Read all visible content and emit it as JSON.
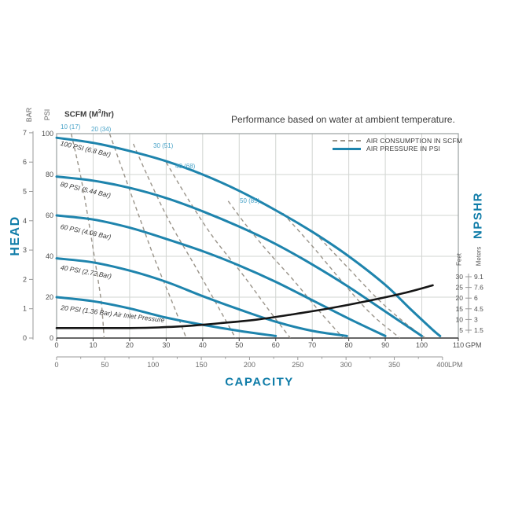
{
  "title": "Performance based on water at ambient temperature.",
  "legend": [
    {
      "label": "AIR CONSUMPTION IN SCFM",
      "style": "dashed"
    },
    {
      "label": "AIR PRESSURE IN PSI",
      "style": "solid"
    }
  ],
  "scfm_header": {
    "pre": "SCFM (M",
    "sup": "3",
    "post": "/hr)"
  },
  "axes": {
    "left": {
      "title": "HEAD",
      "bar_label": "BAR",
      "psi_label": "PSI",
      "bar_ticks": [
        7,
        6,
        5,
        4,
        3,
        2,
        1,
        0
      ],
      "psi_ticks": [
        100,
        80,
        60,
        40,
        20,
        0
      ]
    },
    "bottom": {
      "title": "CAPACITY",
      "gpm_ticks": [
        0,
        10,
        20,
        30,
        40,
        50,
        60,
        70,
        80,
        90,
        100,
        110
      ],
      "gpm_unit": "GPM",
      "lpm_ticks": [
        0,
        50,
        100,
        150,
        200,
        250,
        300,
        350,
        400
      ],
      "lpm_unit": "LPM"
    },
    "right": {
      "title": "NPSHR",
      "feet_label": "Feet",
      "meters_label": "Meters",
      "feet_ticks": [
        "30",
        "25",
        "20",
        "15",
        "10",
        "5"
      ],
      "meters_ticks": [
        "9.1",
        "7.6",
        "6",
        "4.5",
        "3",
        "1.5"
      ]
    }
  },
  "colors": {
    "pressure_teal": "#1e84ad",
    "axis_title_teal": "#0f7ca8",
    "consumption_gray": "#9a948a",
    "npshr_black": "#151515",
    "scfm_label_teal": "#49a3c8",
    "grid_gray": "#d2d5d2",
    "border_gray": "#9aa0a0"
  },
  "chart_data": {
    "type": "line",
    "title": "Performance based on water at ambient temperature.",
    "xlabel": "CAPACITY",
    "ylabel": "HEAD",
    "x_units": {
      "primary": "GPM",
      "secondary": "LPM"
    },
    "y_units": {
      "primary": "PSI",
      "secondary": "BAR"
    },
    "x_range_gpm": [
      0,
      110
    ],
    "y_range_psi": [
      0,
      100
    ],
    "npshr_range_feet": [
      5,
      30
    ],
    "grid": true,
    "legend_position": "top-right",
    "pressure_series": [
      {
        "label": "100 PSI (6.8 Bar)",
        "inlet_psi": 100,
        "points_gpm_psi": [
          [
            0,
            98
          ],
          [
            10,
            95.5
          ],
          [
            20,
            91.5
          ],
          [
            30,
            86.5
          ],
          [
            40,
            80
          ],
          [
            50,
            72
          ],
          [
            60,
            62.5
          ],
          [
            70,
            52
          ],
          [
            80,
            40
          ],
          [
            90,
            26
          ],
          [
            97,
            14
          ],
          [
            103,
            4
          ],
          [
            105,
            1
          ]
        ]
      },
      {
        "label": "80 PSI (5.44 Bar)",
        "inlet_psi": 80,
        "points_gpm_psi": [
          [
            0,
            79
          ],
          [
            10,
            77
          ],
          [
            20,
            73.5
          ],
          [
            30,
            68.5
          ],
          [
            40,
            62
          ],
          [
            50,
            54.5
          ],
          [
            60,
            46
          ],
          [
            70,
            36
          ],
          [
            80,
            25
          ],
          [
            90,
            13
          ],
          [
            100,
            1
          ]
        ]
      },
      {
        "label": "60 PSI (4.08 Bar)",
        "inlet_psi": 60,
        "points_gpm_psi": [
          [
            0,
            60
          ],
          [
            10,
            58
          ],
          [
            20,
            54
          ],
          [
            30,
            48.5
          ],
          [
            40,
            42.5
          ],
          [
            50,
            35.5
          ],
          [
            60,
            27.5
          ],
          [
            70,
            18.5
          ],
          [
            80,
            9.5
          ],
          [
            90,
            1
          ]
        ]
      },
      {
        "label": "40 PSI (2.72 Bar)",
        "inlet_psi": 40,
        "points_gpm_psi": [
          [
            0,
            39
          ],
          [
            10,
            37
          ],
          [
            20,
            33
          ],
          [
            30,
            27.5
          ],
          [
            40,
            20.5
          ],
          [
            50,
            14
          ],
          [
            60,
            8
          ],
          [
            70,
            3.5
          ],
          [
            79.5,
            1
          ]
        ]
      },
      {
        "label": "20 PSI (1.36 Bar) Air Inlet Pressure",
        "inlet_psi": 20,
        "points_gpm_psi": [
          [
            0,
            20
          ],
          [
            10,
            18
          ],
          [
            20,
            14.5
          ],
          [
            30,
            10
          ],
          [
            40,
            6.5
          ],
          [
            50,
            3.5
          ],
          [
            60,
            1
          ]
        ]
      }
    ],
    "consumption_series": [
      {
        "label": "10 (17)",
        "scfm": 10,
        "points_gpm_psi": [
          [
            4,
            100
          ],
          [
            6.5,
            80
          ],
          [
            8.5,
            60
          ],
          [
            10.5,
            38
          ],
          [
            12.2,
            18
          ],
          [
            13,
            0
          ]
        ]
      },
      {
        "label": "20 (34)",
        "scfm": 20,
        "points_gpm_psi": [
          [
            14.5,
            100
          ],
          [
            18.5,
            80
          ],
          [
            22.5,
            60
          ],
          [
            27,
            38
          ],
          [
            32,
            16
          ],
          [
            35.5,
            0
          ]
        ]
      },
      {
        "label": "30 (51)",
        "scfm": 30,
        "points_gpm_psi": [
          [
            21,
            95
          ],
          [
            26,
            75
          ],
          [
            31.5,
            55
          ],
          [
            38,
            35
          ],
          [
            44,
            16
          ],
          [
            49,
            0
          ]
        ]
      },
      {
        "label": "40 (68)",
        "scfm": 40,
        "points_gpm_psi": [
          [
            30,
            86
          ],
          [
            36,
            68
          ],
          [
            43,
            49
          ],
          [
            51,
            31
          ],
          [
            58,
            14
          ],
          [
            64,
            0
          ]
        ]
      },
      {
        "label": "50 (85)",
        "scfm": 50,
        "points_gpm_psi": [
          [
            47,
            67
          ],
          [
            52,
            55
          ],
          [
            58,
            42
          ],
          [
            65,
            28
          ],
          [
            72,
            13
          ],
          [
            78.5,
            0
          ]
        ]
      },
      {
        "label": "",
        "points_gpm_psi": [
          [
            62,
            61
          ],
          [
            70,
            45
          ],
          [
            78,
            28
          ],
          [
            86,
            12
          ],
          [
            94,
            0
          ]
        ]
      },
      {
        "label": "",
        "points_gpm_psi": [
          [
            72,
            49
          ],
          [
            80,
            34
          ],
          [
            88,
            19
          ],
          [
            95,
            8
          ],
          [
            101,
            0
          ]
        ]
      }
    ],
    "npshr_series": {
      "name": "NPSHR",
      "points_gpm_feet": [
        [
          0,
          6
        ],
        [
          10,
          6
        ],
        [
          20,
          6
        ],
        [
          28,
          6.3
        ],
        [
          36,
          7
        ],
        [
          45,
          8.3
        ],
        [
          55,
          10
        ],
        [
          65,
          12.5
        ],
        [
          75,
          15.3
        ],
        [
          85,
          18.6
        ],
        [
          95,
          22.3
        ],
        [
          103,
          26
        ]
      ]
    }
  }
}
